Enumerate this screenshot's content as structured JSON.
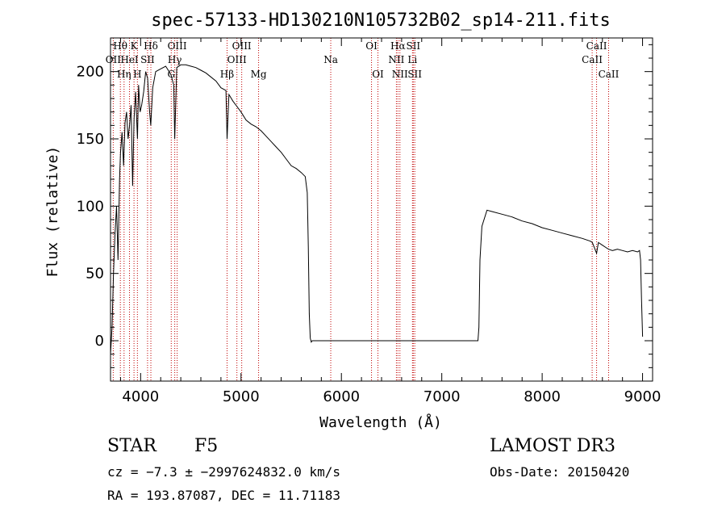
{
  "chart_data": {
    "type": "line",
    "title": "spec-57133-HD130210N105732B02_sp14-211.fits",
    "xlabel": "Wavelength (Å)",
    "ylabel": "Flux (relative)",
    "xlim": [
      3700,
      9100
    ],
    "ylim": [
      -30,
      225
    ],
    "x_ticks": [
      4000,
      5000,
      6000,
      7000,
      8000,
      9000
    ],
    "y_ticks": [
      0,
      50,
      100,
      150,
      200
    ],
    "series": [
      {
        "name": "flux",
        "x": [
          3700,
          3715,
          3730,
          3745,
          3760,
          3775,
          3790,
          3800,
          3815,
          3830,
          3845,
          3860,
          3875,
          3890,
          3905,
          3920,
          3935,
          3950,
          3960,
          3968,
          3980,
          3995,
          4010,
          4030,
          4050,
          4070,
          4090,
          4101,
          4120,
          4150,
          4200,
          4250,
          4300,
          4330,
          4340,
          4360,
          4400,
          4450,
          4500,
          4550,
          4600,
          4650,
          4700,
          4750,
          4800,
          4850,
          4861,
          4880,
          4920,
          4960,
          5000,
          5050,
          5100,
          5150,
          5200,
          5250,
          5300,
          5350,
          5400,
          5450,
          5500,
          5550,
          5600,
          5640,
          5660,
          5670,
          5680,
          5690,
          5700,
          5710,
          5720,
          5800,
          6000,
          6500,
          7000,
          7200,
          7350,
          7360,
          7370,
          7380,
          7400,
          7450,
          7500,
          7600,
          7700,
          7800,
          7900,
          8000,
          8100,
          8200,
          8300,
          8400,
          8480,
          8500,
          8542,
          8560,
          8600,
          8640,
          8662,
          8700,
          8750,
          8800,
          8850,
          8900,
          8950,
          8970,
          8980,
          8990,
          9000
        ],
        "y": [
          -10,
          10,
          50,
          80,
          100,
          60,
          120,
          140,
          155,
          130,
          162,
          170,
          150,
          160,
          175,
          115,
          165,
          185,
          165,
          150,
          190,
          170,
          175,
          185,
          200,
          195,
          170,
          160,
          188,
          200,
          202,
          204,
          198,
          190,
          150,
          203,
          205,
          205,
          204,
          203,
          201,
          199,
          196,
          193,
          188,
          186,
          150,
          183,
          178,
          174,
          170,
          164,
          161,
          159,
          156,
          152,
          148,
          144,
          140,
          135,
          130,
          128,
          125,
          122,
          110,
          70,
          20,
          2,
          -1,
          0,
          0,
          0,
          0,
          0,
          0,
          0,
          0,
          0,
          10,
          60,
          85,
          97,
          96,
          94,
          92,
          89,
          87,
          84,
          82,
          80,
          78,
          76,
          74,
          73,
          65,
          73,
          71,
          69,
          68,
          67,
          68,
          67,
          66,
          67,
          66,
          67,
          60,
          30,
          3
        ]
      }
    ],
    "line_markers": [
      {
        "label": "OII",
        "wavelength": 3727,
        "row": 2
      },
      {
        "label": "Hθ",
        "wavelength": 3798,
        "row": 1
      },
      {
        "label": "Hη",
        "wavelength": 3835,
        "row": 3
      },
      {
        "label": "HeI",
        "wavelength": 3889,
        "row": 2
      },
      {
        "label": "K",
        "wavelength": 3934,
        "row": 1
      },
      {
        "label": "H",
        "wavelength": 3968,
        "row": 3
      },
      {
        "label": "SII",
        "wavelength": 4069,
        "row": 2
      },
      {
        "label": "Hδ",
        "wavelength": 4102,
        "row": 1
      },
      {
        "label": "Hγ",
        "wavelength": 4340,
        "row": 2
      },
      {
        "label": "G",
        "wavelength": 4305,
        "row": 3
      },
      {
        "label": "OIII",
        "wavelength": 4364,
        "row": 1
      },
      {
        "label": "Hβ",
        "wavelength": 4861,
        "row": 3
      },
      {
        "label": "OIII",
        "wavelength": 4959,
        "row": 2
      },
      {
        "label": "OIII",
        "wavelength": 5007,
        "row": 1
      },
      {
        "label": "Mg",
        "wavelength": 5175,
        "row": 3
      },
      {
        "label": "Na",
        "wavelength": 5894,
        "row": 2
      },
      {
        "label": "OI",
        "wavelength": 6300,
        "row": 1
      },
      {
        "label": "OI",
        "wavelength": 6364,
        "row": 3
      },
      {
        "label": "NII",
        "wavelength": 6548,
        "row": 2
      },
      {
        "label": "Hα",
        "wavelength": 6563,
        "row": 1
      },
      {
        "label": "NII",
        "wavelength": 6583,
        "row": 3
      },
      {
        "label": "Li",
        "wavelength": 6708,
        "row": 2
      },
      {
        "label": "SII",
        "wavelength": 6716,
        "row": 1
      },
      {
        "label": "SII",
        "wavelength": 6731,
        "row": 3
      },
      {
        "label": "CaII",
        "wavelength": 8498,
        "row": 2
      },
      {
        "label": "CaII",
        "wavelength": 8542,
        "row": 1
      },
      {
        "label": "CaII",
        "wavelength": 8662,
        "row": 3
      }
    ]
  },
  "info": {
    "object_type": "STAR",
    "subclass": "F5",
    "survey": "LAMOST DR3",
    "redshift_text": "cz = −7.3 ± −2997624832.0 km/s",
    "obs_date_text": "Obs-Date: 20150420",
    "coords_text": "RA = 193.87087, DEC =  11.71183"
  }
}
